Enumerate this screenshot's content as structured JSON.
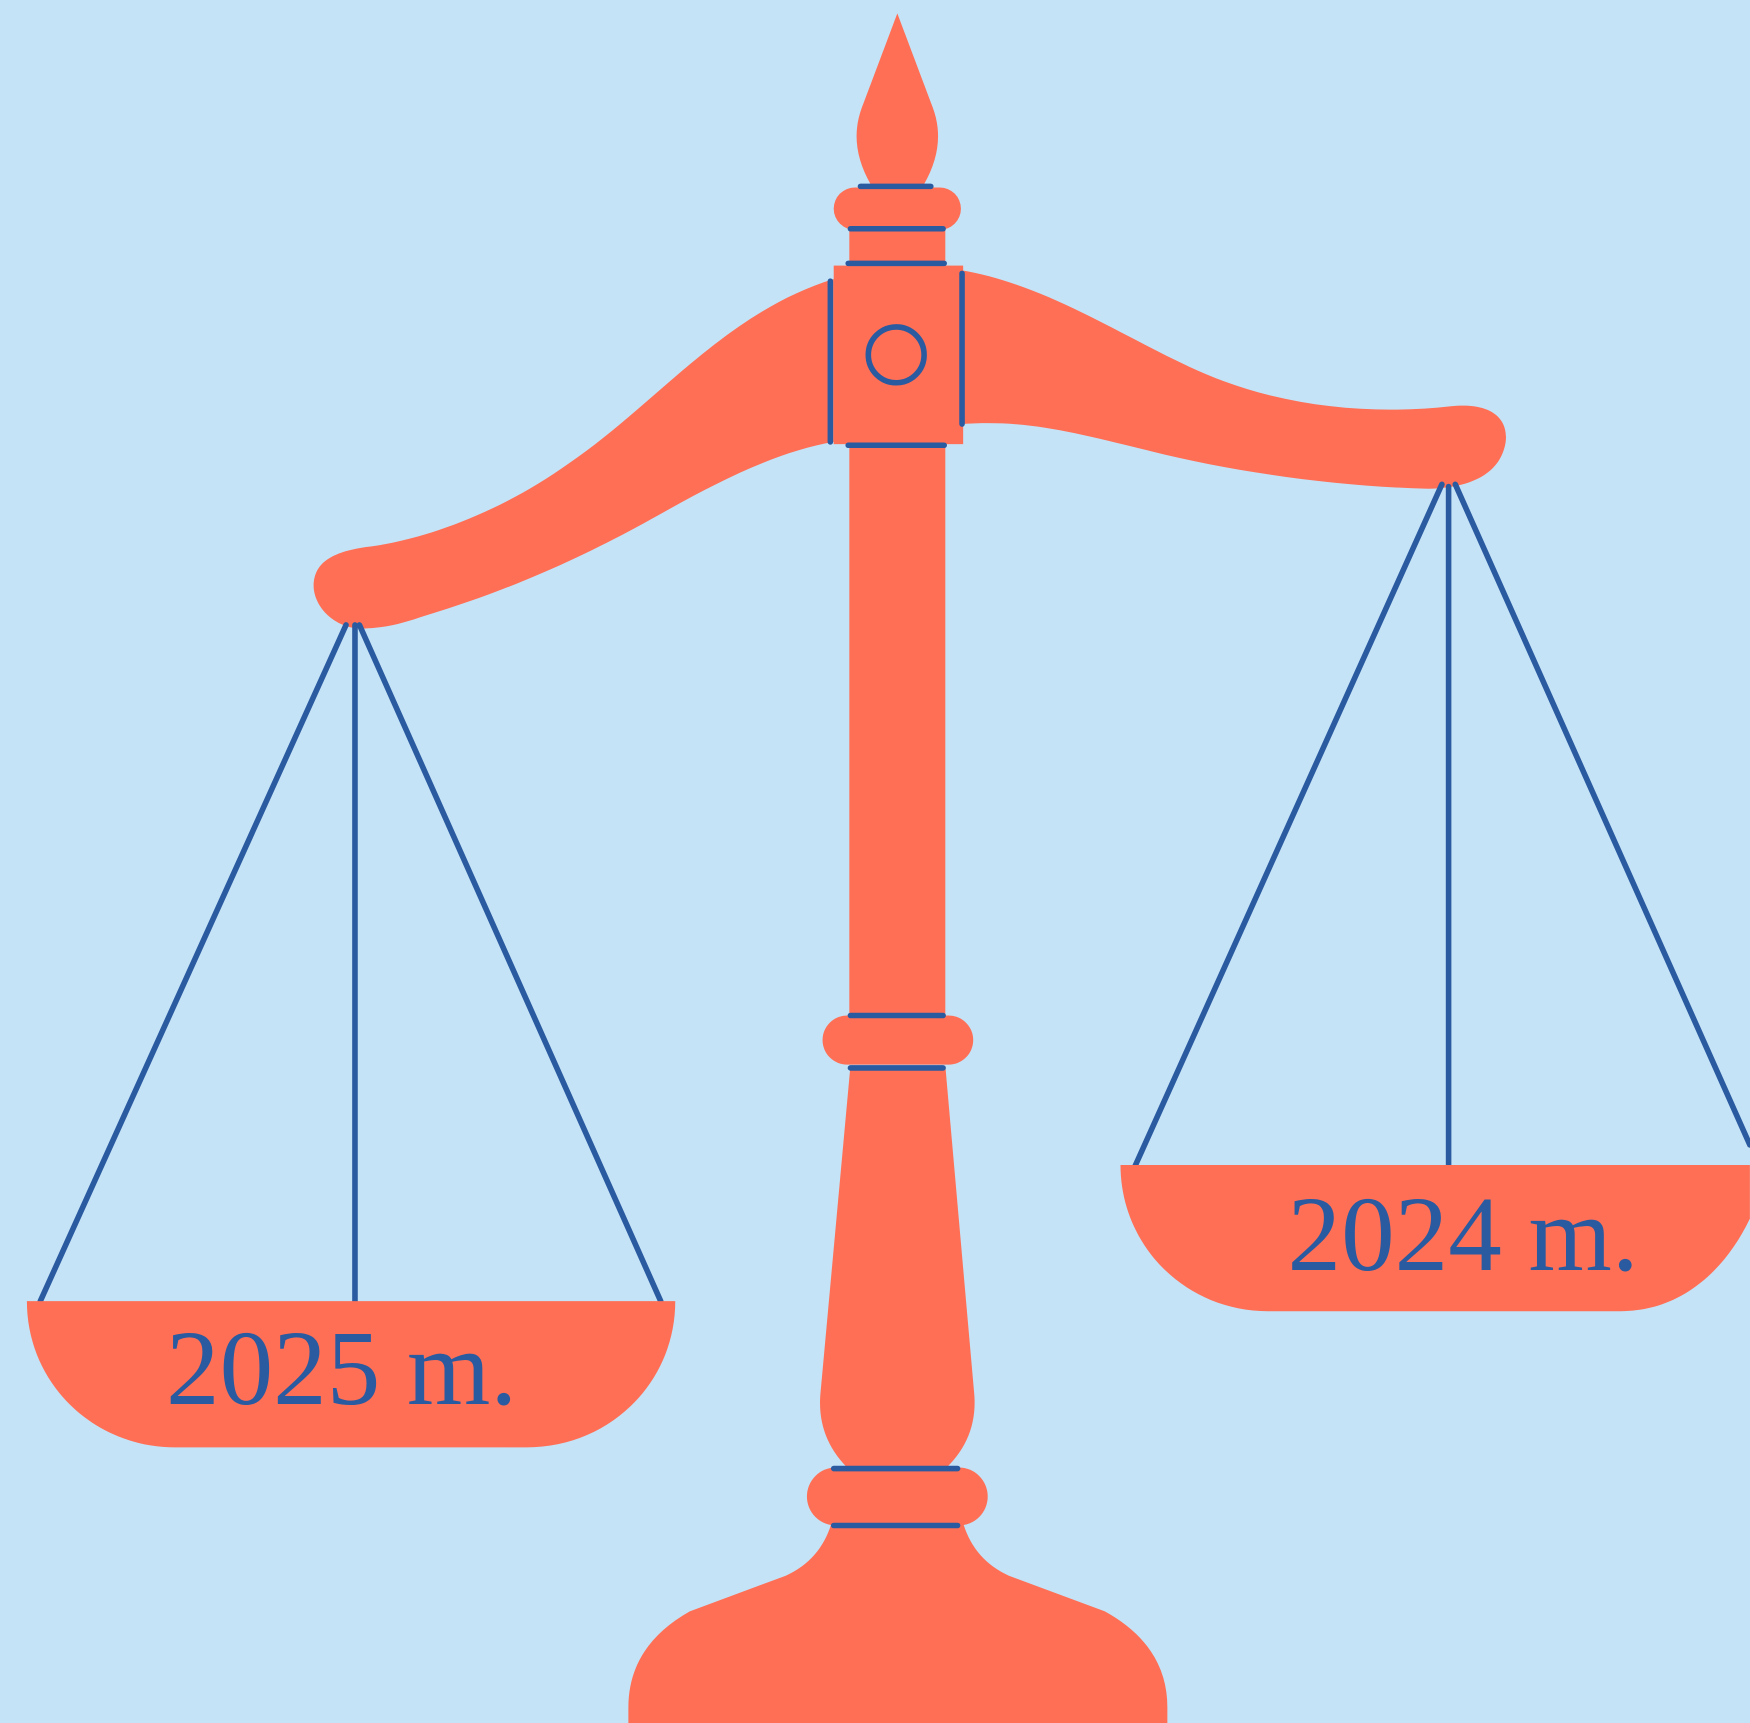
{
  "pans": [
    {
      "label": "2025 m."
    },
    {
      "label": "2024 m."
    }
  ]
}
